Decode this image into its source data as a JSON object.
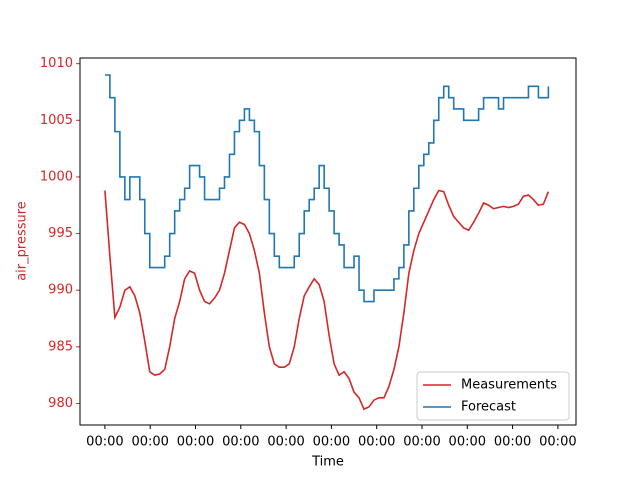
{
  "chart_data": {
    "type": "line",
    "y_label": "air_pressure",
    "x_label": "Time",
    "x": [
      0,
      0.11,
      0.22,
      0.33,
      0.44,
      0.55,
      0.66,
      0.77,
      0.88,
      0.99,
      1.1,
      1.21,
      1.32,
      1.43,
      1.54,
      1.65,
      1.76,
      1.87,
      1.98,
      2.09,
      2.2,
      2.31,
      2.42,
      2.53,
      2.64,
      2.75,
      2.86,
      2.97,
      3.08,
      3.19,
      3.3,
      3.41,
      3.52,
      3.63,
      3.74,
      3.85,
      3.96,
      4.07,
      4.18,
      4.29,
      4.4,
      4.51,
      4.62,
      4.73,
      4.84,
      4.95,
      5.06,
      5.17,
      5.28,
      5.39,
      5.5,
      5.61,
      5.72,
      5.83,
      5.94,
      6.05,
      6.16,
      6.27,
      6.38,
      6.49,
      6.6,
      6.71,
      6.82,
      6.93,
      7.04,
      7.15,
      7.26,
      7.37,
      7.48,
      7.59,
      7.7,
      7.81,
      7.92,
      8.03,
      8.14,
      8.25,
      8.36,
      8.47,
      8.58,
      8.69,
      8.8,
      8.91,
      9.02,
      9.13,
      9.24,
      9.35,
      9.46,
      9.57,
      9.68,
      9.79
    ],
    "series": [
      {
        "name": "Measurements",
        "color": "#d62728",
        "step": false,
        "values": [
          998.8,
          993,
          987.6,
          988.5,
          990,
          990.3,
          989.5,
          988,
          985.5,
          982.8,
          982.5,
          982.6,
          983,
          985,
          987.5,
          989,
          991,
          991.7,
          991.5,
          990,
          989,
          988.8,
          989.3,
          990,
          991.5,
          993.5,
          995.5,
          996,
          995.8,
          995,
          993.5,
          991.5,
          988,
          985,
          983.5,
          983.2,
          983.2,
          983.5,
          985,
          987.5,
          989.5,
          990.3,
          991,
          990.5,
          989,
          986,
          983.5,
          982.5,
          982.8,
          982.2,
          981,
          980.5,
          979.5,
          979.7,
          980.3,
          980.5,
          980.5,
          981.5,
          983,
          985,
          988,
          991.5,
          993.5,
          995,
          996,
          997,
          998,
          998.8,
          998.7,
          997.5,
          996.5,
          996,
          995.5,
          995.3,
          996,
          996.8,
          997.7,
          997.5,
          997.2,
          997.3,
          997.4,
          997.3,
          997.4,
          997.6,
          998.3,
          998.4,
          998,
          997.5,
          997.6,
          998.7
        ]
      },
      {
        "name": "Forecast",
        "color": "#1f77b4",
        "step": true,
        "values": [
          1009,
          1007,
          1004,
          1000,
          998,
          1000,
          1000,
          998,
          995,
          992,
          992,
          992,
          993,
          995,
          997,
          998,
          999,
          1001,
          1001,
          1000,
          998,
          998,
          998,
          999,
          1000,
          1002,
          1004,
          1005,
          1006,
          1005,
          1004,
          1001,
          998,
          995,
          993,
          992,
          992,
          992,
          993,
          995,
          997,
          998,
          999,
          1001,
          999,
          997,
          995,
          994,
          992,
          992,
          993,
          990,
          989,
          989,
          990,
          990,
          990,
          990,
          991,
          992,
          994,
          997,
          999,
          1001,
          1002,
          1003,
          1005,
          1007,
          1008,
          1007,
          1006,
          1006,
          1005,
          1005,
          1005,
          1006,
          1007,
          1007,
          1007,
          1006,
          1007,
          1007,
          1007,
          1007,
          1007,
          1008,
          1008,
          1007,
          1007,
          1008
        ]
      }
    ],
    "xlim": [
      -0.55,
      10.4
    ],
    "xticks": [
      {
        "value": 0,
        "label": "00:00"
      },
      {
        "value": 1,
        "label": "00:00"
      },
      {
        "value": 2,
        "label": "00:00"
      },
      {
        "value": 3,
        "label": "00:00"
      },
      {
        "value": 4,
        "label": "00:00"
      },
      {
        "value": 5,
        "label": "00:00"
      },
      {
        "value": 6,
        "label": "00:00"
      },
      {
        "value": 7,
        "label": "00:00"
      },
      {
        "value": 8,
        "label": "00:00"
      },
      {
        "value": 9,
        "label": "00:00"
      },
      {
        "value": 10,
        "label": "00:00"
      }
    ],
    "ylim": [
      978.1,
      1010.5
    ],
    "yticks": [
      980,
      985,
      990,
      995,
      1000,
      1005,
      1010
    ],
    "y_axis_color": "#d62728",
    "legend": "lower right",
    "grid": false
  }
}
